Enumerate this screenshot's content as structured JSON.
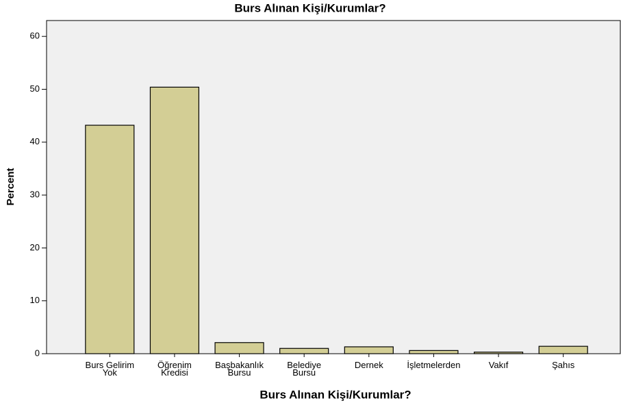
{
  "chart_data": {
    "type": "bar",
    "title": "Burs Alınan Kişi/Kurumlar?",
    "x_label": "Burs Alınan Kişi/Kurumlar?",
    "y_label": "Percent",
    "categories": [
      "Burs Gelirim\nYok",
      "Öğrenim\nKredisi",
      "Başbakanlık\nBursu",
      "Belediye\nBursu",
      "Dernek",
      "İşletmelerden",
      "Vakıf",
      "Şahıs"
    ],
    "values": [
      43.2,
      50.4,
      2.1,
      1.0,
      1.3,
      0.6,
      0.3,
      1.4
    ],
    "color": "#d3ce95",
    "ylim": [
      0,
      63
    ],
    "yticks": [
      0,
      10,
      20,
      30,
      40,
      50,
      60
    ],
    "grid": false
  }
}
